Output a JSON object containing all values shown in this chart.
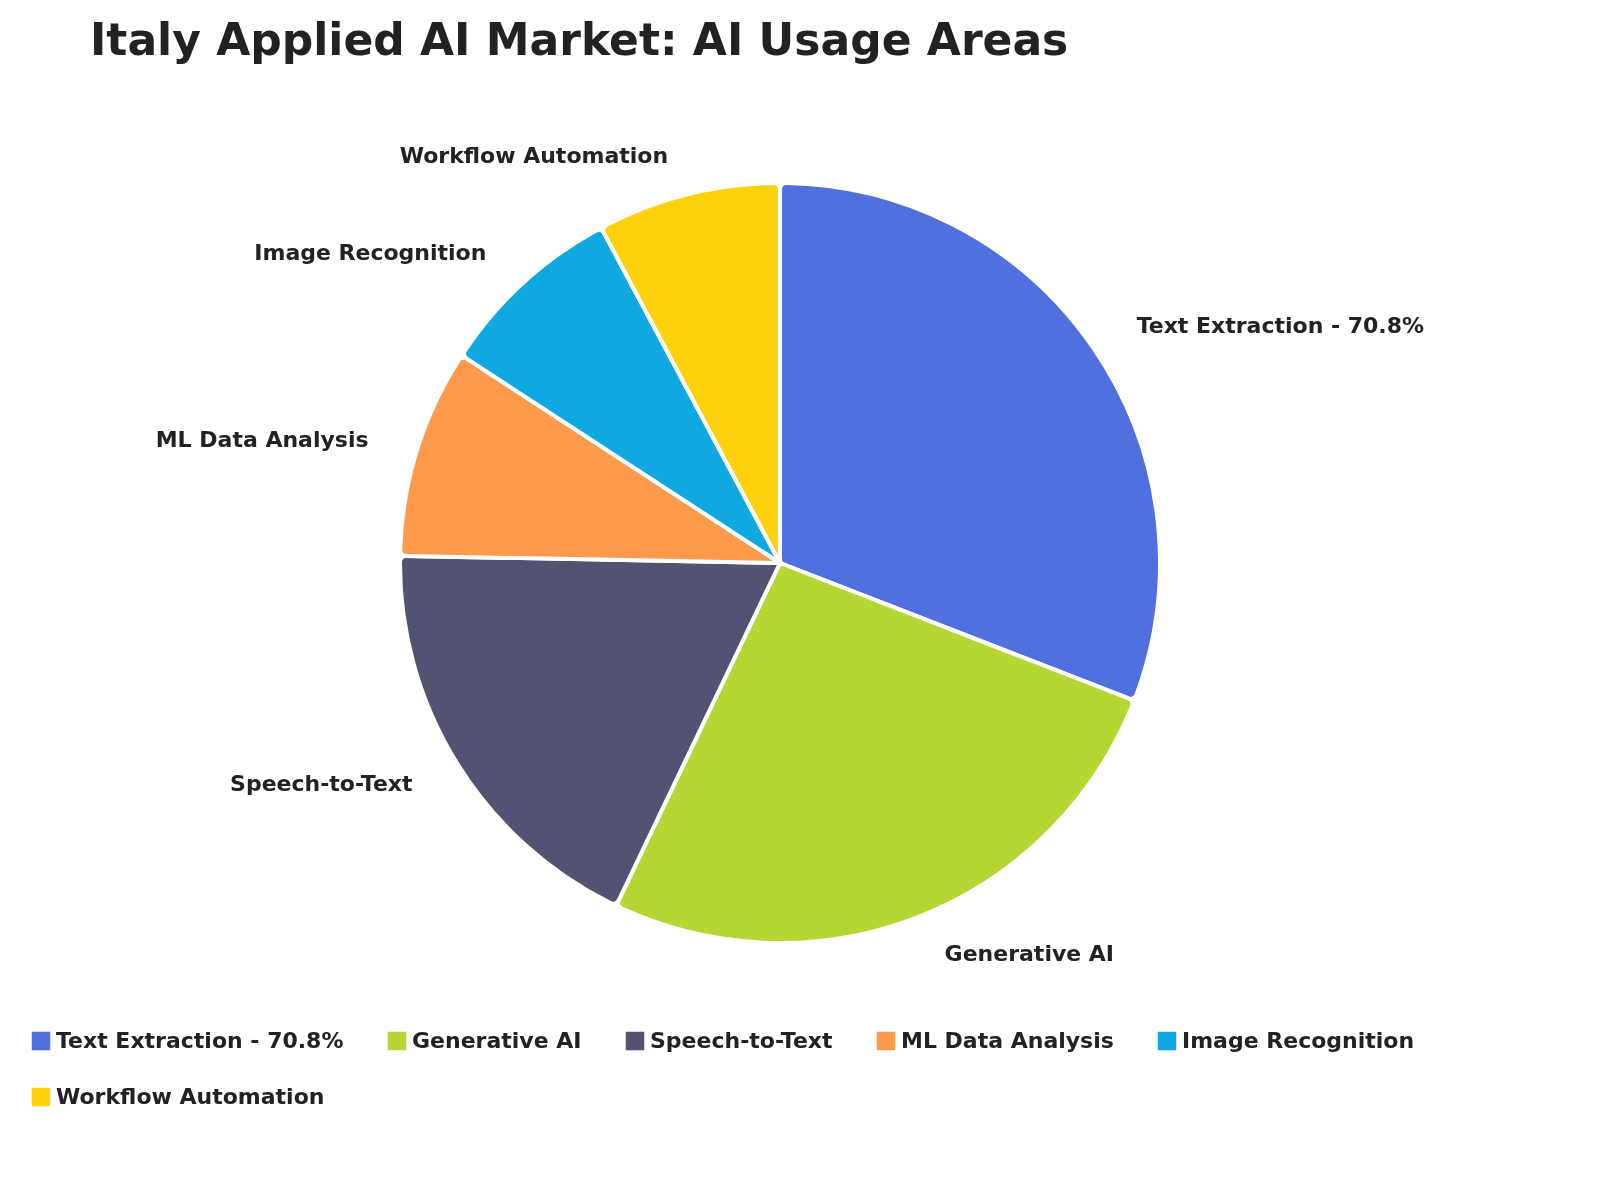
{
  "chart_data": {
    "type": "pie",
    "title": "Italy Applied AI Market: AI Usage Areas",
    "categories": [
      "Text Extraction - 70.8%",
      "Generative AI",
      "Speech-to-Text",
      "ML Data Analysis",
      "Image Recognition",
      "Workflow Automation"
    ],
    "values": [
      30.9,
      26.2,
      18.2,
      8.9,
      8.0,
      7.8
    ],
    "colors": [
      "#5170df",
      "#b5d733",
      "#525373",
      "#ff9a4d",
      "#0fa8e0",
      "#ffd10c"
    ],
    "legend": "bottom"
  }
}
